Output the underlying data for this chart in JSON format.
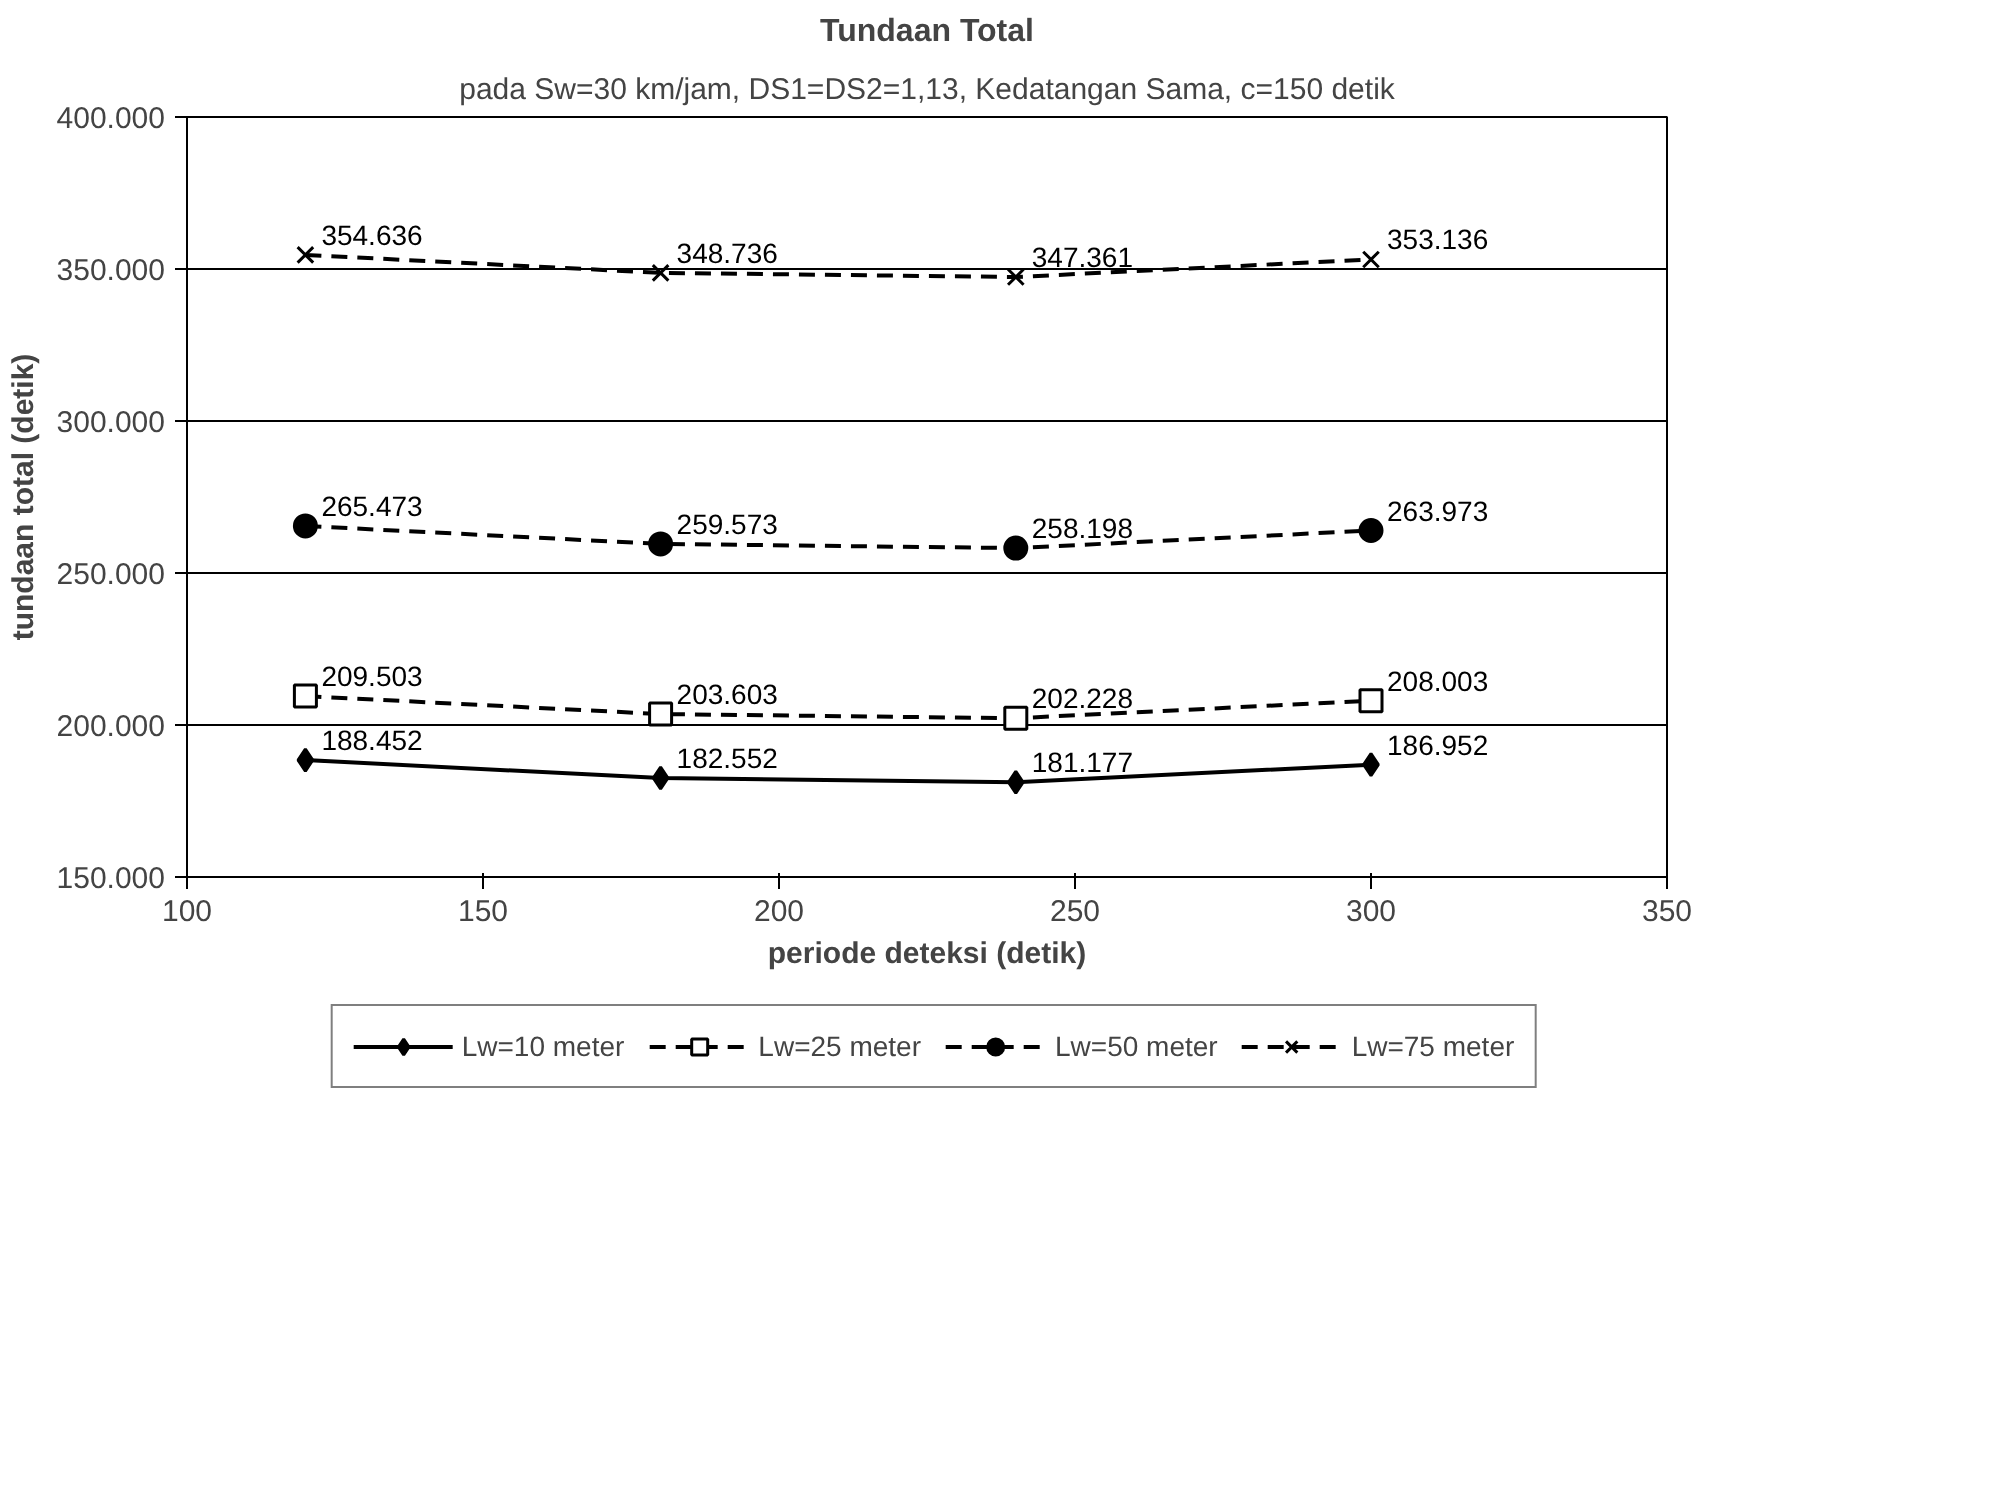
{
  "chart_data": {
    "type": "line",
    "title": "Tundaan Total",
    "subtitle": "pada Sw=30 km/jam, DS1=DS2=1,13, Kedatangan Sama, c=150 detik",
    "xlabel": "periode deteksi (detik)",
    "ylabel": "tundaan total (detik)",
    "x": [
      120,
      180,
      240,
      300
    ],
    "series": [
      {
        "name": "Lw=10 meter",
        "color": "#000000",
        "marker": "diamond",
        "line_style": "solid",
        "values": [
          188452,
          182552,
          181177,
          186952
        ],
        "value_labels": [
          "188.452",
          "182.552",
          "181.177",
          "186.952"
        ]
      },
      {
        "name": "Lw=25 meter",
        "color": "#000000",
        "marker": "square",
        "line_style": "dashed",
        "values": [
          209503,
          203603,
          202228,
          208003
        ],
        "value_labels": [
          "209.503",
          "203.603",
          "202.228",
          "208.003"
        ]
      },
      {
        "name": "Lw=50 meter",
        "color": "#000000",
        "marker": "circle",
        "line_style": "dashed",
        "values": [
          265473,
          259573,
          258198,
          263973
        ],
        "value_labels": [
          "265.473",
          "259.573",
          "258.198",
          "263.973"
        ]
      },
      {
        "name": "Lw=75 meter",
        "color": "#000000",
        "marker": "cross",
        "line_style": "dashed",
        "values": [
          354636,
          348736,
          347361,
          353136
        ],
        "value_labels": [
          "354.636",
          "348.736",
          "347.361",
          "353.136"
        ]
      }
    ],
    "xlim": [
      100,
      350
    ],
    "xticks": [
      100,
      150,
      200,
      250,
      300,
      350
    ],
    "ylim": [
      150000,
      400000
    ],
    "yticks": [
      {
        "value": 150000,
        "label": "150.000"
      },
      {
        "value": 200000,
        "label": "200.000"
      },
      {
        "value": 250000,
        "label": "250.000"
      },
      {
        "value": 300000,
        "label": "300.000"
      },
      {
        "value": 350000,
        "label": "350.000"
      },
      {
        "value": 400000,
        "label": "400.000"
      }
    ],
    "grid": "y",
    "legend": "bottom"
  }
}
